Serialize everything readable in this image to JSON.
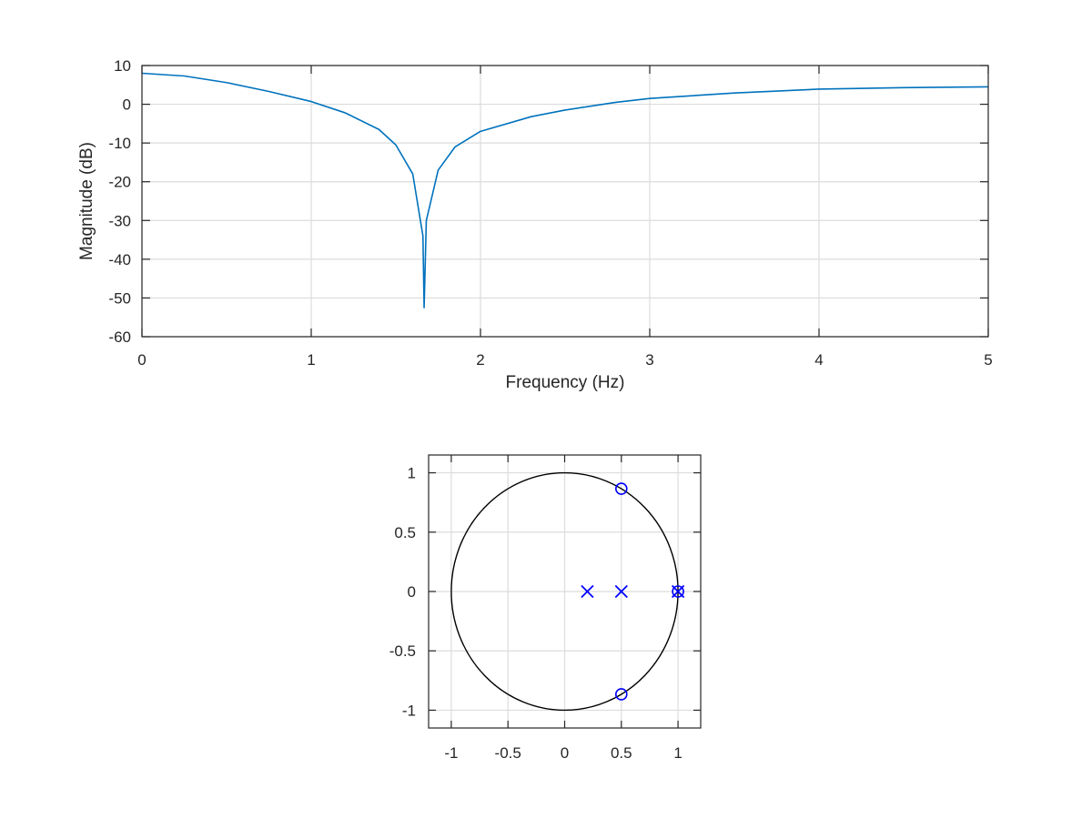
{
  "chart_data": [
    {
      "type": "line",
      "title": "",
      "xlabel": "Frequency (Hz)",
      "ylabel": "Magnitude (dB)",
      "xlim": [
        0,
        5
      ],
      "ylim": [
        -60,
        10
      ],
      "xticks": [
        0,
        1,
        2,
        3,
        4,
        5
      ],
      "yticks": [
        10,
        0,
        -10,
        -20,
        -30,
        -40,
        -50,
        -60
      ],
      "grid": true,
      "line_color": "#0072bd",
      "series": [
        {
          "x": [
            0,
            0.25,
            0.5,
            0.75,
            1.0,
            1.2,
            1.4,
            1.5,
            1.6,
            1.66,
            1.667,
            1.68,
            1.75,
            1.85,
            2.0,
            2.3,
            2.5,
            2.8,
            3.0,
            3.5,
            4.0,
            4.5,
            5.0
          ],
          "y": [
            8.0,
            7.3,
            5.6,
            3.3,
            0.7,
            -2.2,
            -6.5,
            -10.5,
            -18.0,
            -34.0,
            -52.5,
            -30.0,
            -17.0,
            -11.0,
            -7.0,
            -3.2,
            -1.5,
            0.5,
            1.5,
            2.9,
            3.9,
            4.3,
            4.5
          ]
        }
      ]
    },
    {
      "type": "scatter",
      "title": "",
      "xlabel": "",
      "ylabel": "",
      "xlim": [
        -1.2,
        1.2
      ],
      "ylim": [
        -1.15,
        1.15
      ],
      "xticks": [
        -1,
        -0.5,
        0,
        0.5,
        1
      ],
      "yticks": [
        1,
        0.5,
        0,
        -0.5,
        -1
      ],
      "grid": true,
      "marker_color": "#0000ff",
      "unit_circle": true,
      "zeros": [
        {
          "x": 0.5,
          "y": 0.866
        },
        {
          "x": 0.5,
          "y": -0.866
        },
        {
          "x": 1.0,
          "y": 0
        }
      ],
      "poles": [
        {
          "x": 0.2,
          "y": 0
        },
        {
          "x": 0.5,
          "y": 0
        },
        {
          "x": 1.0,
          "y": 0
        }
      ]
    }
  ]
}
